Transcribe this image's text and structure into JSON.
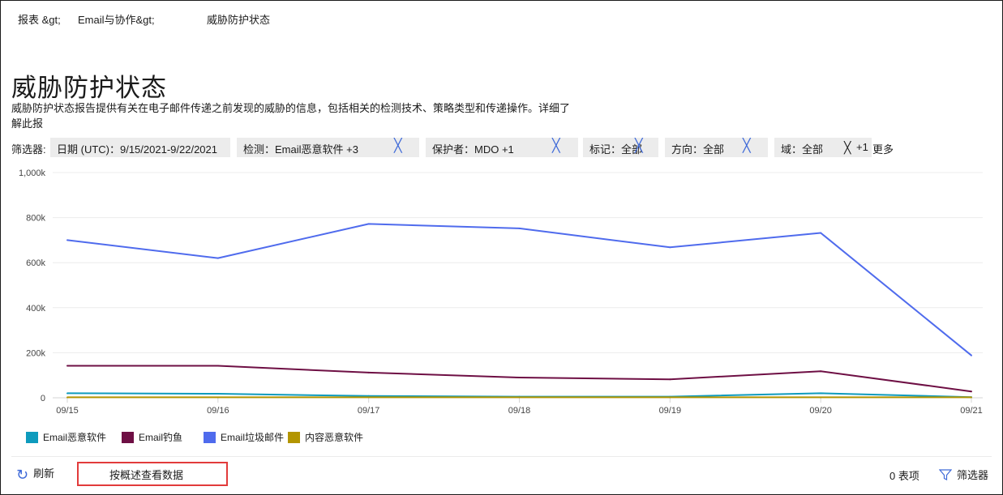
{
  "breadcrumb": [
    "报表 &gt;",
    "Email与协作&gt;",
    "威胁防护状态"
  ],
  "title": "威胁防护状态",
  "description": "威胁防护状态报告提供有关在电子邮件传递之前发现的威胁的信息，包括相关的检测技术、策略类型和传递操作。详细了解此报",
  "filters": {
    "label": "筛选器:",
    "chips": [
      {
        "text": "日期 (UTC)：9/15/2021-9/22/2021"
      },
      {
        "text": "检测：Email恶意软件 +3"
      },
      {
        "text": "保护者：MDO +1"
      },
      {
        "text": "标记：全部"
      },
      {
        "text": "方向：全部"
      },
      {
        "text": "域：全部"
      }
    ],
    "close_glyph": "╳",
    "extra_count": "+1",
    "more": "更多"
  },
  "chart_data": {
    "type": "line",
    "x": [
      "09/15",
      "09/16",
      "09/17",
      "09/18",
      "09/19",
      "09/20",
      "09/21"
    ],
    "yticks": [
      "0",
      "200k",
      "400k",
      "600k",
      "800k",
      "1,000k"
    ],
    "ylim": [
      0,
      1000000
    ],
    "grid": true,
    "legend_position": "bottom-left",
    "series": [
      {
        "name": "Email恶意软件",
        "color": "#0e9bbd",
        "values": [
          20000,
          18000,
          8000,
          5000,
          5000,
          20000,
          3000
        ]
      },
      {
        "name": "Email钓鱼",
        "color": "#6e0f44",
        "values": [
          142000,
          142000,
          112000,
          90000,
          82000,
          118000,
          28000
        ]
      },
      {
        "name": "Email垃圾邮件",
        "color": "#4f6bed",
        "values": [
          700000,
          620000,
          772000,
          752000,
          668000,
          732000,
          188000
        ]
      },
      {
        "name": "内容恶意软件",
        "color": "#b39500",
        "values": [
          2000,
          2000,
          2000,
          2000,
          2000,
          2000,
          2000
        ]
      }
    ]
  },
  "bottom": {
    "refresh": "刷新",
    "view_data": "按概述查看数据",
    "count": "0 表项",
    "filter": "筛选器"
  }
}
